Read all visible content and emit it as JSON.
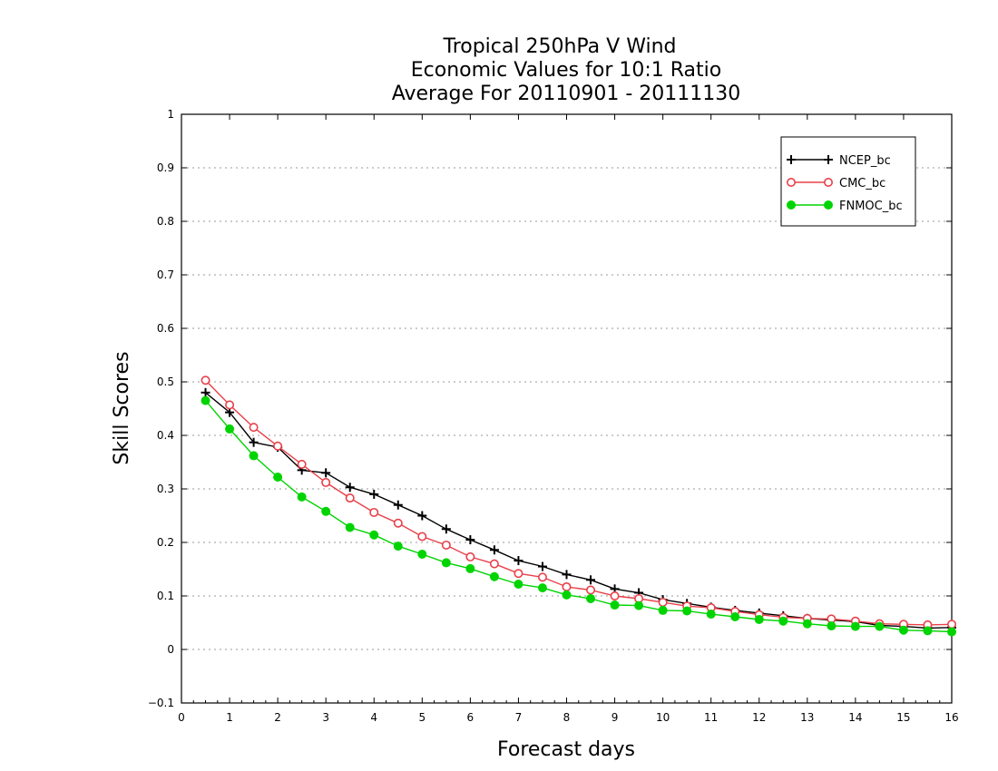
{
  "chart_data": {
    "type": "line",
    "title_lines": [
      "Tropical 250hPa V Wind",
      "Economic Values for 10:1 Ratio",
      "Average For 20110901 - 20111130"
    ],
    "xlabel": "Forecast days",
    "ylabel": "Skill Scores",
    "xlim": [
      0,
      16
    ],
    "ylim": [
      -0.1,
      1
    ],
    "x_ticks": [
      "0",
      "1",
      "2",
      "3",
      "4",
      "5",
      "6",
      "7",
      "8",
      "9",
      "10",
      "11",
      "12",
      "13",
      "14",
      "15",
      "16"
    ],
    "y_ticks": [
      "−0.1",
      "0",
      "0.1",
      "0.2",
      "0.3",
      "0.4",
      "0.5",
      "0.6",
      "0.7",
      "0.8",
      "0.9",
      "1"
    ],
    "y_tick_values": [
      -0.1,
      0,
      0.1,
      0.2,
      0.3,
      0.4,
      0.5,
      0.6,
      0.7,
      0.8,
      0.9,
      1
    ],
    "grid": "horizontal dotted",
    "legend_position": "top-right",
    "x": [
      0.5,
      1,
      1.5,
      2,
      2.5,
      3,
      3.5,
      4,
      4.5,
      5,
      5.5,
      6,
      6.5,
      7,
      7.5,
      8,
      8.5,
      9,
      9.5,
      10,
      10.5,
      11,
      11.5,
      12,
      12.5,
      13,
      13.5,
      14,
      14.5,
      15,
      15.5,
      16
    ],
    "series": [
      {
        "name": "NCEP_bc",
        "color": "#000000",
        "marker": "plus",
        "values": [
          0.48,
          0.443,
          0.387,
          0.378,
          0.335,
          0.33,
          0.303,
          0.29,
          0.27,
          0.25,
          0.225,
          0.205,
          0.186,
          0.166,
          0.155,
          0.14,
          0.13,
          0.113,
          0.106,
          0.093,
          0.086,
          0.079,
          0.073,
          0.068,
          0.063,
          0.058,
          0.055,
          0.052,
          0.045,
          0.043,
          0.04,
          0.041
        ]
      },
      {
        "name": "CMC_bc",
        "color": "#e8404a",
        "marker": "open-circle",
        "values": [
          0.503,
          0.457,
          0.415,
          0.38,
          0.346,
          0.312,
          0.283,
          0.256,
          0.236,
          0.211,
          0.195,
          0.173,
          0.16,
          0.142,
          0.135,
          0.117,
          0.111,
          0.1,
          0.095,
          0.088,
          0.081,
          0.078,
          0.071,
          0.065,
          0.06,
          0.058,
          0.057,
          0.053,
          0.048,
          0.047,
          0.046,
          0.047
        ]
      },
      {
        "name": "FNMOC_bc",
        "color": "#00d400",
        "marker": "filled-circle",
        "values": [
          0.465,
          0.412,
          0.362,
          0.322,
          0.285,
          0.258,
          0.228,
          0.214,
          0.193,
          0.178,
          0.162,
          0.151,
          0.136,
          0.122,
          0.115,
          0.102,
          0.095,
          0.083,
          0.082,
          0.073,
          0.072,
          0.066,
          0.061,
          0.056,
          0.053,
          0.048,
          0.044,
          0.043,
          0.043,
          0.036,
          0.035,
          0.033
        ]
      }
    ]
  }
}
